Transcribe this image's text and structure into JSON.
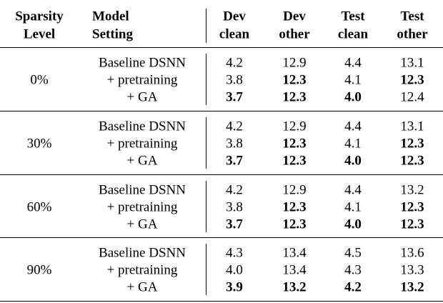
{
  "table": {
    "header": [
      [
        "Sparsity",
        "Level"
      ],
      [
        "Model",
        "Setting"
      ],
      [
        "Dev",
        "clean"
      ],
      [
        "Dev",
        "other"
      ],
      [
        "Test",
        "clean"
      ],
      [
        "Test",
        "other"
      ]
    ],
    "groups": [
      {
        "sparsity": "0%",
        "rows": [
          {
            "setting": "Baseline DSNN",
            "cells": [
              "4.2",
              "12.9",
              "4.4",
              "13.1"
            ],
            "bold": [
              false,
              false,
              false,
              false
            ]
          },
          {
            "setting": "+ pretraining",
            "cells": [
              "3.8",
              "12.3",
              "4.1",
              "12.3"
            ],
            "bold": [
              false,
              true,
              false,
              true
            ]
          },
          {
            "setting": "+ GA",
            "cells": [
              "3.7",
              "12.3",
              "4.0",
              "12.4"
            ],
            "bold": [
              true,
              true,
              true,
              false
            ]
          }
        ]
      },
      {
        "sparsity": "30%",
        "rows": [
          {
            "setting": "Baseline DSNN",
            "cells": [
              "4.2",
              "12.9",
              "4.4",
              "13.1"
            ],
            "bold": [
              false,
              false,
              false,
              false
            ]
          },
          {
            "setting": "+ pretraining",
            "cells": [
              "3.8",
              "12.3",
              "4.1",
              "12.3"
            ],
            "bold": [
              false,
              true,
              false,
              true
            ]
          },
          {
            "setting": "+ GA",
            "cells": [
              "3.7",
              "12.3",
              "4.0",
              "12.3"
            ],
            "bold": [
              true,
              true,
              true,
              true
            ]
          }
        ]
      },
      {
        "sparsity": "60%",
        "rows": [
          {
            "setting": "Baseline DSNN",
            "cells": [
              "4.2",
              "12.9",
              "4.4",
              "13.2"
            ],
            "bold": [
              false,
              false,
              false,
              false
            ]
          },
          {
            "setting": "+ pretraining",
            "cells": [
              "3.8",
              "12.3",
              "4.1",
              "12.3"
            ],
            "bold": [
              false,
              true,
              false,
              true
            ]
          },
          {
            "setting": "+ GA",
            "cells": [
              "3.7",
              "12.3",
              "4.0",
              "12.3"
            ],
            "bold": [
              true,
              true,
              true,
              true
            ]
          }
        ]
      },
      {
        "sparsity": "90%",
        "rows": [
          {
            "setting": "Baseline DSNN",
            "cells": [
              "4.3",
              "13.4",
              "4.5",
              "13.6"
            ],
            "bold": [
              false,
              false,
              false,
              false
            ]
          },
          {
            "setting": "+ pretraining",
            "cells": [
              "4.0",
              "13.4",
              "4.3",
              "13.3"
            ],
            "bold": [
              false,
              false,
              false,
              false
            ]
          },
          {
            "setting": "+ GA",
            "cells": [
              "3.9",
              "13.2",
              "4.2",
              "13.2"
            ],
            "bold": [
              true,
              true,
              true,
              true
            ]
          }
        ]
      }
    ]
  }
}
